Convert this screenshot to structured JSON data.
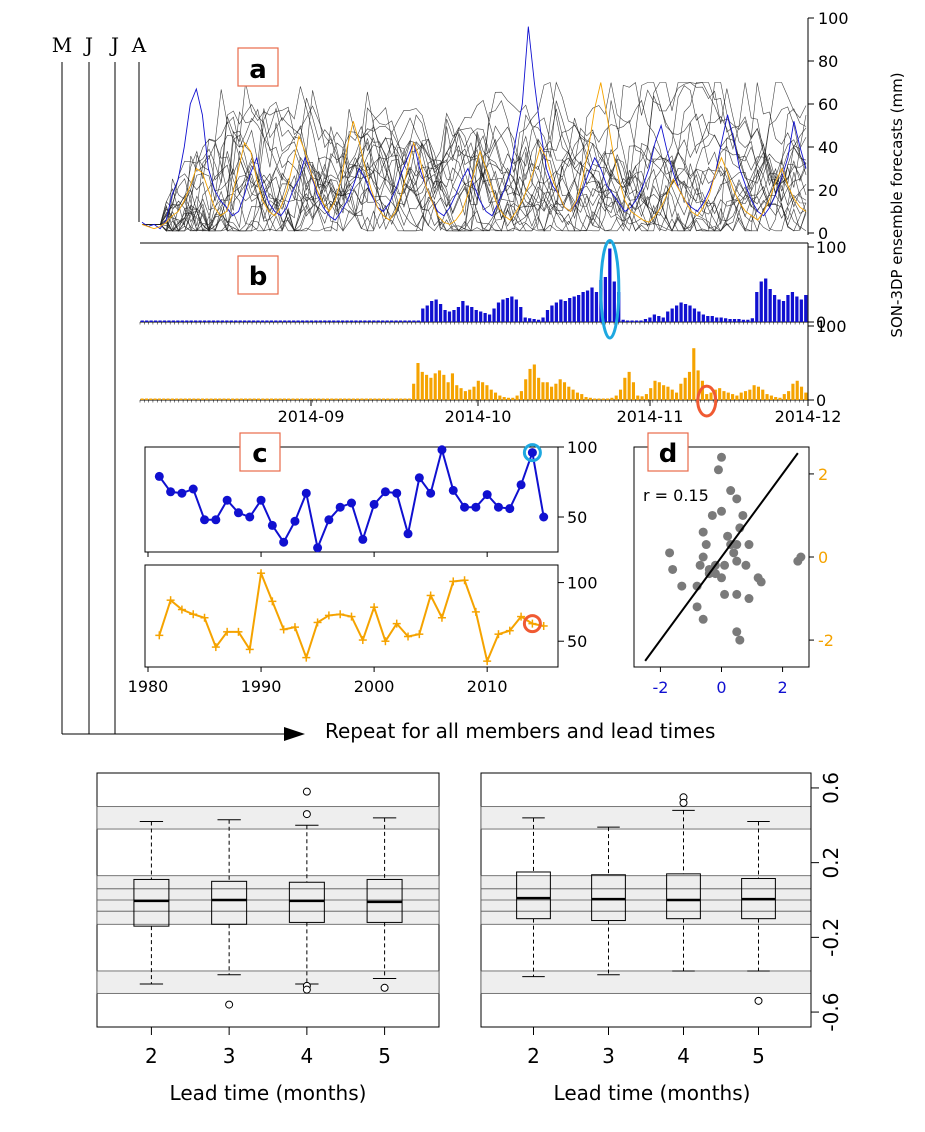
{
  "figure": {
    "timeline_letters": [
      "M",
      "J",
      "J",
      "A"
    ],
    "repeat_text": "Repeat for all members and lead times",
    "panel_labels": {
      "a": "a",
      "b": "b",
      "c": "c",
      "d": "d"
    }
  },
  "colors": {
    "blue": "#1010d0",
    "orange": "#f5a300",
    "gray": "#7a7a7a",
    "cyan_circle": "#1ea8e0",
    "red_circle": "#f05a32",
    "band": "#eeeeee"
  },
  "chart_data": [
    {
      "id": "a",
      "type": "line",
      "ylabel": "SON-3DP ensemble forecasts (mm)",
      "ylim": [
        0,
        100
      ],
      "yticks": [
        "0",
        "20",
        "40",
        "60",
        "80",
        "100"
      ],
      "x_range": [
        "2014-08-01",
        "2014-12-01"
      ],
      "note_series": "many ensemble members in black, one member blue, one member orange",
      "series": [
        {
          "color": "blue",
          "values": [
            5,
            3,
            4,
            2,
            6,
            18,
            25,
            40,
            60,
            67,
            55,
            30,
            20,
            15,
            12,
            8,
            10,
            18,
            28,
            35,
            22,
            14,
            10,
            8,
            12,
            20,
            25,
            35,
            28,
            18,
            12,
            8,
            6,
            10,
            15,
            22,
            30,
            25,
            18,
            12,
            10,
            14,
            20,
            28,
            35,
            42,
            30,
            22,
            15,
            10,
            8,
            12,
            18,
            25,
            30,
            22,
            15,
            10,
            8,
            14,
            20,
            28,
            45,
            60,
            96,
            70,
            48,
            30,
            22,
            18,
            12,
            10,
            14,
            20,
            28,
            35,
            30,
            22,
            18,
            14,
            10,
            12,
            16,
            22,
            30,
            42,
            50,
            38,
            28,
            20,
            15,
            12,
            10,
            14,
            20,
            28,
            42,
            55,
            44,
            30,
            22,
            15,
            10,
            8,
            12,
            18,
            26,
            35,
            52,
            40,
            30
          ]
        },
        {
          "color": "orange",
          "values": [
            4,
            3,
            2,
            3,
            5,
            8,
            10,
            15,
            22,
            30,
            28,
            20,
            12,
            8,
            10,
            18,
            30,
            42,
            38,
            25,
            15,
            10,
            8,
            12,
            20,
            32,
            45,
            38,
            28,
            20,
            14,
            10,
            15,
            25,
            40,
            52,
            42,
            30,
            20,
            12,
            8,
            6,
            10,
            18,
            30,
            42,
            35,
            22,
            15,
            8,
            5,
            4,
            6,
            10,
            18,
            28,
            38,
            30,
            20,
            12,
            8,
            6,
            10,
            15,
            22,
            30,
            40,
            35,
            25,
            18,
            12,
            10,
            15,
            25,
            40,
            58,
            70,
            55,
            38,
            25,
            15,
            10,
            8,
            6,
            5,
            8,
            12,
            18,
            25,
            20,
            15,
            10,
            8,
            12,
            18,
            28,
            35,
            28,
            20,
            14,
            10,
            8,
            6,
            10,
            16,
            24,
            30,
            22,
            16,
            12,
            10
          ]
        }
      ]
    },
    {
      "id": "b-upper",
      "type": "bar",
      "color": "blue",
      "ylim": [
        0,
        100
      ],
      "yticks": [
        "0",
        "100"
      ],
      "values": [
        2,
        2,
        2,
        2,
        2,
        2,
        2,
        2,
        2,
        2,
        2,
        2,
        2,
        2,
        2,
        2,
        2,
        2,
        2,
        2,
        2,
        2,
        2,
        2,
        2,
        2,
        2,
        2,
        2,
        2,
        2,
        2,
        2,
        2,
        2,
        2,
        2,
        2,
        2,
        2,
        2,
        2,
        2,
        2,
        2,
        2,
        2,
        2,
        2,
        2,
        2,
        2,
        2,
        2,
        2,
        2,
        2,
        2,
        2,
        2,
        2,
        2,
        2,
        18,
        22,
        28,
        30,
        24,
        16,
        14,
        16,
        20,
        28,
        22,
        20,
        16,
        14,
        12,
        10,
        18,
        26,
        30,
        32,
        34,
        30,
        20,
        6,
        5,
        4,
        3,
        6,
        16,
        22,
        26,
        30,
        28,
        32,
        34,
        36,
        40,
        42,
        46,
        40,
        56,
        60,
        98,
        54,
        40,
        3,
        2,
        2,
        2,
        2,
        4,
        6,
        10,
        8,
        6,
        14,
        18,
        22,
        26,
        24,
        22,
        18,
        14,
        10,
        8,
        8,
        6,
        6,
        5,
        4,
        4,
        4,
        3,
        3,
        5,
        40,
        54,
        58,
        44,
        36,
        30,
        28,
        36,
        40,
        34,
        30,
        36
      ],
      "highlight_index": 105
    },
    {
      "id": "b-lower",
      "type": "bar",
      "color": "orange",
      "ylim": [
        0,
        100
      ],
      "yticks": [
        "0",
        "100"
      ],
      "xticks": [
        "2014-09",
        "2014-10",
        "2014-11",
        "2014-12"
      ],
      "values": [
        2,
        2,
        2,
        2,
        2,
        2,
        2,
        2,
        2,
        2,
        2,
        2,
        2,
        2,
        2,
        2,
        2,
        2,
        2,
        2,
        2,
        2,
        2,
        2,
        2,
        2,
        2,
        2,
        2,
        2,
        2,
        2,
        2,
        2,
        2,
        2,
        2,
        2,
        2,
        2,
        2,
        2,
        2,
        2,
        2,
        2,
        2,
        2,
        2,
        2,
        2,
        2,
        2,
        2,
        2,
        2,
        2,
        2,
        2,
        2,
        2,
        2,
        2,
        22,
        50,
        38,
        34,
        30,
        36,
        40,
        34,
        24,
        36,
        20,
        16,
        12,
        14,
        18,
        26,
        24,
        20,
        14,
        10,
        6,
        4,
        3,
        3,
        6,
        12,
        28,
        42,
        48,
        30,
        24,
        24,
        18,
        22,
        28,
        24,
        18,
        14,
        10,
        8,
        4,
        3,
        2,
        2,
        2,
        2,
        3,
        6,
        14,
        30,
        38,
        24,
        6,
        5,
        8,
        16,
        26,
        24,
        20,
        18,
        14,
        10,
        22,
        30,
        38,
        70,
        40,
        26,
        8,
        10,
        14,
        16,
        12,
        10,
        8,
        6,
        10,
        12,
        14,
        20,
        18,
        14,
        8,
        6,
        4,
        3,
        8,
        12,
        22,
        26,
        18,
        10
      ],
      "highlight_index": 131
    },
    {
      "id": "c-upper",
      "type": "line",
      "color": "blue",
      "x": [
        1981,
        1982,
        1983,
        1984,
        1985,
        1986,
        1987,
        1988,
        1989,
        1990,
        1991,
        1992,
        1993,
        1994,
        1995,
        1996,
        1997,
        1998,
        1999,
        2000,
        2001,
        2002,
        2003,
        2004,
        2005,
        2006,
        2007,
        2008,
        2009,
        2010,
        2011,
        2012,
        2013,
        2014,
        2015
      ],
      "values": [
        79,
        68,
        67,
        70,
        48,
        48,
        62,
        53,
        50,
        62,
        44,
        32,
        47,
        67,
        28,
        48,
        57,
        60,
        34,
        59,
        68,
        67,
        38,
        78,
        67,
        98,
        69,
        57,
        57,
        66,
        57,
        56,
        73,
        96,
        50
      ],
      "ylim": [
        25,
        100
      ],
      "yticks": [
        "50",
        "100"
      ],
      "highlight_index": 33
    },
    {
      "id": "c-lower",
      "type": "line",
      "color": "orange",
      "x": [
        1981,
        1982,
        1983,
        1984,
        1985,
        1986,
        1987,
        1988,
        1989,
        1990,
        1991,
        1992,
        1993,
        1994,
        1995,
        1996,
        1997,
        1998,
        1999,
        2000,
        2001,
        2002,
        2003,
        2004,
        2005,
        2006,
        2007,
        2008,
        2009,
        2010,
        2011,
        2012,
        2013,
        2014,
        2015
      ],
      "values": [
        55,
        85,
        77,
        73,
        70,
        45,
        58,
        58,
        43,
        108,
        84,
        60,
        62,
        36,
        66,
        72,
        73,
        71,
        51,
        79,
        50,
        65,
        54,
        56,
        89,
        70,
        101,
        102,
        75,
        33,
        56,
        59,
        71,
        65,
        63
      ],
      "ylim": [
        28,
        115
      ],
      "yticks": [
        "50",
        "100"
      ],
      "xticks": [
        "1980",
        "1990",
        "2000",
        "2010"
      ],
      "highlight_index": 33
    },
    {
      "id": "d",
      "type": "scatter",
      "annotation": "r = 0.15",
      "xlim": [
        -2.8,
        2.8
      ],
      "ylim": [
        -2.6,
        2.6
      ],
      "xticks": [
        "-2",
        "0",
        "2"
      ],
      "yticks": [
        "-2",
        "0",
        "2"
      ],
      "x": [
        -1.7,
        -1.6,
        -1.3,
        -0.8,
        -0.6,
        -0.7,
        -0.5,
        -0.2,
        0.0,
        -0.1,
        0.2,
        0.3,
        0.5,
        0.5,
        0.6,
        0.7,
        0.9,
        -0.3,
        -0.6,
        -0.4,
        0.0,
        0.3,
        0.5,
        1.2,
        1.3,
        2.5,
        2.6,
        0.1,
        -0.4,
        -0.8,
        0.8,
        0.5,
        0.5,
        0.6,
        0.0,
        -0.2,
        0.1,
        0.4,
        0.9,
        -0.6
      ],
      "y": [
        0.1,
        -0.3,
        -0.7,
        -1.2,
        -1.5,
        -0.2,
        0.3,
        -0.4,
        1.1,
        2.1,
        0.5,
        0.3,
        -0.1,
        -1.8,
        -2.0,
        1.0,
        0.3,
        1.0,
        0.0,
        -0.3,
        2.4,
        1.6,
        1.4,
        -0.5,
        -0.6,
        -0.1,
        0.0,
        -0.2,
        -0.4,
        -0.7,
        -0.2,
        -0.9,
        0.3,
        0.7,
        -0.5,
        -0.2,
        -0.9,
        0.1,
        -1.0,
        0.6
      ],
      "fit_line": {
        "slope": 1.0,
        "intercept": 0.0
      }
    },
    {
      "id": "e-left",
      "type": "box",
      "categories": [
        "2",
        "3",
        "4",
        "5"
      ],
      "xlabel": "Lead time (months)",
      "ylim": [
        -0.68,
        0.68
      ],
      "boxes": [
        {
          "whisker_low": -0.45,
          "q1": -0.14,
          "median": -0.005,
          "q3": 0.11,
          "whisker_high": 0.42,
          "outliers": []
        },
        {
          "whisker_low": -0.4,
          "q1": -0.13,
          "median": 0.0,
          "q3": 0.1,
          "whisker_high": 0.43,
          "outliers": [
            -0.56
          ]
        },
        {
          "whisker_low": -0.45,
          "q1": -0.12,
          "median": -0.005,
          "q3": 0.095,
          "whisker_high": 0.4,
          "outliers": [
            -0.46,
            -0.48,
            0.58,
            0.46
          ]
        },
        {
          "whisker_low": -0.42,
          "q1": -0.12,
          "median": -0.01,
          "q3": 0.11,
          "whisker_high": 0.44,
          "outliers": [
            -0.47
          ]
        }
      ]
    },
    {
      "id": "e-right",
      "type": "box",
      "categories": [
        "2",
        "3",
        "4",
        "5"
      ],
      "xlabel": "Lead time (months)",
      "ylim": [
        -0.68,
        0.68
      ],
      "yticks": [
        "0.6",
        "0.2",
        "-0.2",
        "-0.6"
      ],
      "boxes": [
        {
          "whisker_low": -0.41,
          "q1": -0.1,
          "median": 0.01,
          "q3": 0.15,
          "whisker_high": 0.44,
          "outliers": []
        },
        {
          "whisker_low": -0.4,
          "q1": -0.11,
          "median": 0.005,
          "q3": 0.135,
          "whisker_high": 0.39,
          "outliers": []
        },
        {
          "whisker_low": -0.38,
          "q1": -0.1,
          "median": 0.0,
          "q3": 0.14,
          "whisker_high": 0.48,
          "outliers": [
            0.55,
            0.52
          ]
        },
        {
          "whisker_low": -0.38,
          "q1": -0.1,
          "median": 0.005,
          "q3": 0.115,
          "whisker_high": 0.42,
          "outliers": [
            -0.54
          ]
        }
      ]
    }
  ]
}
